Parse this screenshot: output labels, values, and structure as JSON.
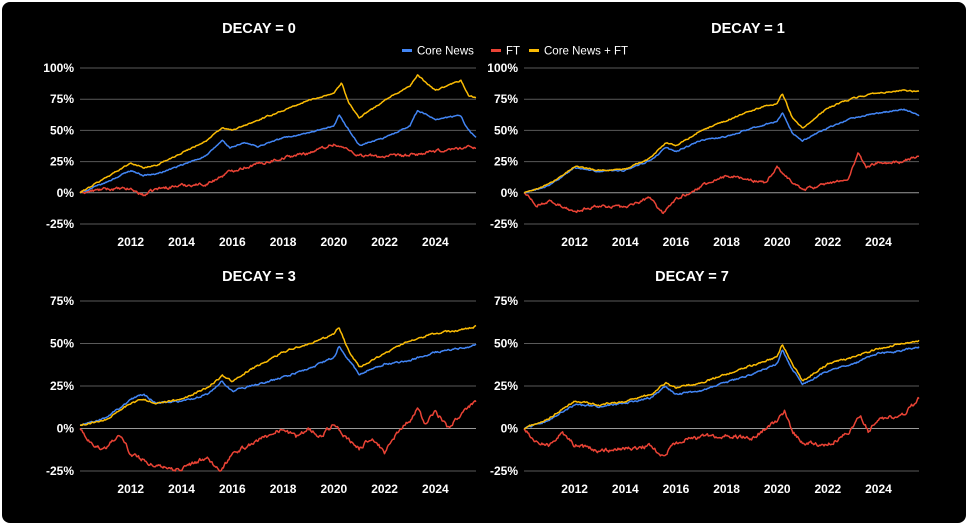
{
  "chart_data": {
    "type": "line",
    "legend": {
      "position": "top-center",
      "entries": [
        "Core News",
        "FT",
        "Core News + FT"
      ]
    },
    "series_colors": {
      "Core News": "#4285f4",
      "FT": "#ea4335",
      "Core News + FT": "#fbbc04"
    },
    "background": "#000000",
    "x_range": [
      2010.0,
      2025.6
    ],
    "x_ticks": [
      "2012",
      "2014",
      "2016",
      "2018",
      "2020",
      "2022",
      "2024"
    ],
    "panels": [
      {
        "title": "DECAY = 0",
        "ylim": [
          -0.25,
          1.0
        ],
        "y_ticks": [
          "100%",
          "75%",
          "50%",
          "25%",
          "0%",
          "-25%"
        ],
        "series": [
          {
            "name": "Core News",
            "x": [
              2010.0,
              2011.0,
              2012.0,
              2012.5,
              2013.0,
              2014.0,
              2015.0,
              2015.6,
              2015.9,
              2016.5,
              2017.0,
              2018.0,
              2019.0,
              2020.0,
              2020.2,
              2020.6,
              2021.0,
              2022.0,
              2023.0,
              2023.3,
              2024.0,
              2025.0,
              2025.3,
              2025.6
            ],
            "values": [
              0,
              0.08,
              0.18,
              0.14,
              0.15,
              0.22,
              0.3,
              0.42,
              0.36,
              0.4,
              0.37,
              0.44,
              0.48,
              0.53,
              0.62,
              0.5,
              0.38,
              0.44,
              0.54,
              0.66,
              0.59,
              0.62,
              0.5,
              0.45
            ]
          },
          {
            "name": "FT",
            "x": [
              2010.0,
              2011.0,
              2012.0,
              2012.5,
              2013.0,
              2014.0,
              2015.0,
              2016.0,
              2017.0,
              2018.0,
              2019.0,
              2020.0,
              2020.5,
              2021.0,
              2022.0,
              2023.0,
              2024.0,
              2025.0,
              2025.6
            ],
            "values": [
              0,
              0.03,
              0.03,
              -0.02,
              0.03,
              0.06,
              0.07,
              0.18,
              0.23,
              0.28,
              0.32,
              0.39,
              0.35,
              0.3,
              0.29,
              0.3,
              0.33,
              0.36,
              0.37
            ]
          },
          {
            "name": "Core News + FT",
            "x": [
              2010.0,
              2011.0,
              2012.0,
              2012.5,
              2013.0,
              2014.0,
              2015.0,
              2015.6,
              2016.0,
              2017.0,
              2018.0,
              2019.0,
              2020.0,
              2020.3,
              2020.6,
              2021.0,
              2022.0,
              2023.0,
              2023.3,
              2024.0,
              2025.0,
              2025.3,
              2025.6
            ],
            "values": [
              0,
              0.12,
              0.24,
              0.2,
              0.22,
              0.32,
              0.42,
              0.52,
              0.5,
              0.58,
              0.66,
              0.74,
              0.8,
              0.88,
              0.72,
              0.6,
              0.74,
              0.86,
              0.94,
              0.82,
              0.9,
              0.78,
              0.76
            ]
          }
        ]
      },
      {
        "title": "DECAY = 1",
        "ylim": [
          -0.25,
          1.0
        ],
        "y_ticks": [
          "100%",
          "75%",
          "50%",
          "25%",
          "0%",
          "-25%"
        ],
        "series": [
          {
            "name": "Core News",
            "x": [
              2010.0,
              2011.0,
              2012.0,
              2013.0,
              2014.0,
              2015.0,
              2015.6,
              2016.0,
              2017.0,
              2018.0,
              2019.0,
              2020.0,
              2020.2,
              2020.6,
              2021.0,
              2022.0,
              2023.0,
              2024.0,
              2025.0,
              2025.6
            ],
            "values": [
              0,
              0.06,
              0.2,
              0.17,
              0.18,
              0.26,
              0.36,
              0.33,
              0.42,
              0.45,
              0.52,
              0.57,
              0.64,
              0.48,
              0.42,
              0.52,
              0.6,
              0.64,
              0.67,
              0.62
            ]
          },
          {
            "name": "FT",
            "x": [
              2010.0,
              2010.5,
              2011.0,
              2012.0,
              2013.0,
              2014.0,
              2015.0,
              2015.5,
              2016.0,
              2017.0,
              2018.0,
              2019.0,
              2019.5,
              2020.0,
              2020.4,
              2021.0,
              2022.0,
              2022.8,
              2023.2,
              2023.5,
              2024.0,
              2025.0,
              2025.6
            ],
            "values": [
              0,
              -0.1,
              -0.07,
              -0.15,
              -0.1,
              -0.12,
              -0.04,
              -0.17,
              -0.05,
              0.05,
              0.14,
              0.1,
              0.08,
              0.2,
              0.12,
              0.02,
              0.08,
              0.1,
              0.32,
              0.2,
              0.24,
              0.25,
              0.3
            ]
          },
          {
            "name": "Core News + FT",
            "x": [
              2010.0,
              2011.0,
              2012.0,
              2013.0,
              2014.0,
              2015.0,
              2015.6,
              2016.0,
              2017.0,
              2018.0,
              2019.0,
              2020.0,
              2020.2,
              2020.6,
              2021.0,
              2022.0,
              2023.0,
              2024.0,
              2025.0,
              2025.6
            ],
            "values": [
              0,
              0.07,
              0.21,
              0.18,
              0.19,
              0.28,
              0.4,
              0.38,
              0.5,
              0.58,
              0.66,
              0.72,
              0.8,
              0.6,
              0.52,
              0.68,
              0.76,
              0.8,
              0.82,
              0.81
            ]
          }
        ]
      },
      {
        "title": "DECAY = 3",
        "ylim": [
          -0.25,
          0.75
        ],
        "y_ticks": [
          "75%",
          "50%",
          "25%",
          "0%",
          "-25%"
        ],
        "series": [
          {
            "name": "Core News",
            "x": [
              2010.0,
              2011.0,
              2012.0,
              2012.5,
              2013.0,
              2014.0,
              2015.0,
              2015.6,
              2016.0,
              2017.0,
              2018.0,
              2019.0,
              2020.0,
              2020.2,
              2020.6,
              2021.0,
              2022.0,
              2023.0,
              2024.0,
              2025.0,
              2025.6
            ],
            "values": [
              0.02,
              0.06,
              0.17,
              0.2,
              0.15,
              0.16,
              0.2,
              0.28,
              0.22,
              0.26,
              0.3,
              0.35,
              0.42,
              0.48,
              0.4,
              0.32,
              0.38,
              0.4,
              0.45,
              0.47,
              0.49
            ]
          },
          {
            "name": "FT",
            "x": [
              2010.0,
              2010.5,
              2011.0,
              2011.5,
              2012.0,
              2013.0,
              2014.0,
              2015.0,
              2015.5,
              2016.0,
              2017.0,
              2018.0,
              2018.5,
              2019.0,
              2019.5,
              2020.0,
              2020.5,
              2021.0,
              2021.5,
              2022.0,
              2022.5,
              2023.0,
              2023.3,
              2023.6,
              2024.0,
              2024.5,
              2025.0,
              2025.6
            ],
            "values": [
              0,
              -0.1,
              -0.12,
              -0.03,
              -0.15,
              -0.22,
              -0.24,
              -0.17,
              -0.25,
              -0.15,
              -0.07,
              0.0,
              -0.05,
              0.0,
              -0.05,
              0.03,
              -0.06,
              -0.12,
              -0.05,
              -0.14,
              -0.02,
              0.05,
              0.12,
              0.02,
              0.1,
              0.0,
              0.08,
              0.16
            ]
          },
          {
            "name": "Core News + FT",
            "x": [
              2010.0,
              2011.0,
              2012.0,
              2012.5,
              2013.0,
              2014.0,
              2015.0,
              2015.6,
              2016.0,
              2017.0,
              2018.0,
              2019.0,
              2020.0,
              2020.2,
              2020.6,
              2021.0,
              2022.0,
              2023.0,
              2024.0,
              2025.0,
              2025.6
            ],
            "values": [
              0.02,
              0.05,
              0.15,
              0.17,
              0.15,
              0.17,
              0.24,
              0.31,
              0.28,
              0.37,
              0.45,
              0.5,
              0.55,
              0.6,
              0.45,
              0.36,
              0.44,
              0.52,
              0.56,
              0.58,
              0.6
            ]
          }
        ]
      },
      {
        "title": "DECAY = 7",
        "ylim": [
          -0.25,
          0.75
        ],
        "y_ticks": [
          "75%",
          "50%",
          "25%",
          "0%",
          "-25%"
        ],
        "series": [
          {
            "name": "Core News",
            "x": [
              2010.0,
              2011.0,
              2012.0,
              2013.0,
              2014.0,
              2015.0,
              2015.6,
              2016.0,
              2017.0,
              2018.0,
              2019.0,
              2020.0,
              2020.2,
              2020.6,
              2021.0,
              2022.0,
              2023.0,
              2024.0,
              2025.0,
              2025.6
            ],
            "values": [
              0,
              0.05,
              0.14,
              0.13,
              0.15,
              0.18,
              0.25,
              0.2,
              0.22,
              0.27,
              0.32,
              0.38,
              0.46,
              0.35,
              0.26,
              0.34,
              0.38,
              0.44,
              0.46,
              0.48
            ]
          },
          {
            "name": "FT",
            "x": [
              2010.0,
              2010.5,
              2011.0,
              2011.5,
              2012.0,
              2013.0,
              2014.0,
              2015.0,
              2015.5,
              2016.0,
              2017.0,
              2018.0,
              2019.0,
              2020.0,
              2020.3,
              2020.6,
              2021.0,
              2022.0,
              2023.0,
              2023.3,
              2023.6,
              2024.0,
              2025.0,
              2025.6
            ],
            "values": [
              0,
              -0.08,
              -0.1,
              -0.02,
              -0.1,
              -0.13,
              -0.12,
              -0.1,
              -0.17,
              -0.08,
              -0.05,
              -0.04,
              -0.06,
              0.05,
              0.1,
              -0.02,
              -0.08,
              -0.1,
              0.0,
              0.08,
              -0.02,
              0.05,
              0.08,
              0.18
            ]
          },
          {
            "name": "Core News + FT",
            "x": [
              2010.0,
              2011.0,
              2012.0,
              2013.0,
              2014.0,
              2015.0,
              2015.6,
              2016.0,
              2017.0,
              2018.0,
              2019.0,
              2020.0,
              2020.2,
              2020.6,
              2021.0,
              2022.0,
              2023.0,
              2024.0,
              2025.0,
              2025.6
            ],
            "values": [
              0,
              0.06,
              0.16,
              0.14,
              0.16,
              0.2,
              0.27,
              0.24,
              0.27,
              0.32,
              0.37,
              0.42,
              0.5,
              0.38,
              0.28,
              0.38,
              0.42,
              0.47,
              0.5,
              0.52
            ]
          }
        ]
      }
    ]
  }
}
